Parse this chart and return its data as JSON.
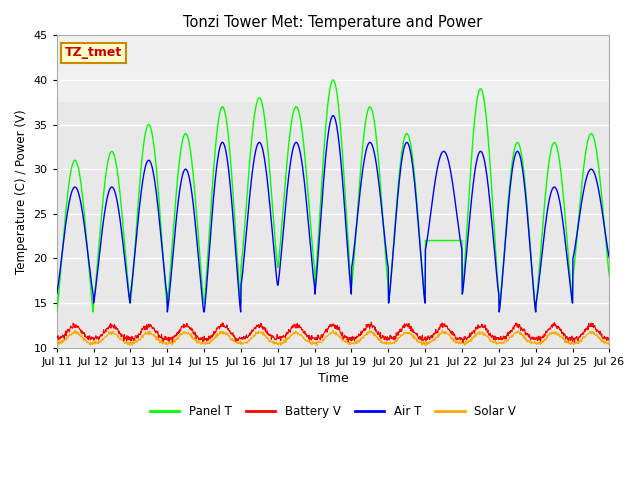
{
  "title": "Tonzi Tower Met: Temperature and Power",
  "xlabel": "Time",
  "ylabel": "Temperature (C) / Power (V)",
  "ylim": [
    10,
    45
  ],
  "xlim": [
    0,
    15
  ],
  "x_tick_labels": [
    "Jul 11",
    "Jul 12",
    "Jul 13",
    "Jul 14",
    "Jul 15",
    "Jul 16",
    "Jul 17",
    "Jul 18",
    "Jul 19",
    "Jul 20",
    "Jul 21",
    "Jul 22",
    "Jul 23",
    "Jul 24",
    "Jul 25",
    "Jul 26"
  ],
  "y_ticks": [
    10,
    15,
    20,
    25,
    30,
    35,
    40,
    45
  ],
  "legend_entries": [
    "Panel T",
    "Battery V",
    "Air T",
    "Solar V"
  ],
  "legend_colors": [
    "#00ff00",
    "#ff0000",
    "#0000ff",
    "#ffaa00"
  ],
  "annotation_text": "TZ_tmet",
  "annotation_bg": "#ffffcc",
  "annotation_border": "#cc8800",
  "annotation_text_color": "#cc0000",
  "bg_lower_color": "#e8e8e8",
  "bg_upper_color": "#f5f5f5",
  "bg_outer_color": "#ffffff",
  "grid_color": "#ffffff",
  "panel_t_color": "#00ff00",
  "battery_v_color": "#ff0000",
  "air_t_color": "#0000ff",
  "solar_v_color": "#ffaa00",
  "n_days": 15,
  "ppd": 96,
  "panel_mins": [
    14,
    15,
    15,
    15,
    15,
    19,
    19,
    17,
    17,
    15,
    22,
    16,
    14,
    15,
    18
  ],
  "panel_maxs": [
    31,
    32,
    35,
    34,
    37,
    38,
    37,
    40,
    37,
    34,
    22,
    39,
    33,
    33,
    34
  ],
  "air_mins": [
    16,
    15,
    16,
    14,
    14,
    17,
    17,
    16,
    19,
    15,
    21,
    16,
    14,
    15,
    20
  ],
  "air_maxs": [
    28,
    28,
    31,
    30,
    33,
    33,
    33,
    36,
    33,
    33,
    32,
    32,
    32,
    28,
    30
  ],
  "bg_band_y": 37.5,
  "figsize": [
    6.4,
    4.8
  ],
  "dpi": 100
}
